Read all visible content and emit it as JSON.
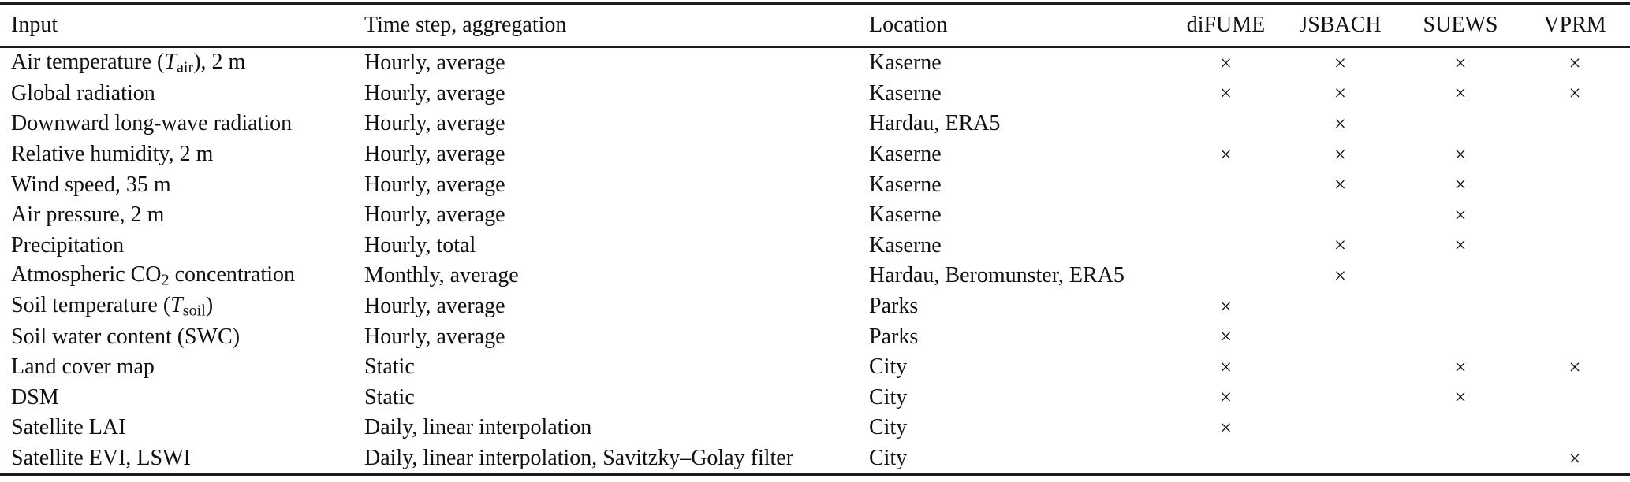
{
  "colors": {
    "text": "#111111",
    "rule": "#1c1c1c",
    "background": "#ffffff"
  },
  "table": {
    "mark_glyph": "×",
    "headers": {
      "input": "Input",
      "timestep": "Time step, aggregation",
      "location": "Location",
      "models": [
        "diFUME",
        "JSBACH",
        "SUEWS",
        "VPRM"
      ]
    },
    "rows": [
      {
        "input": [
          {
            "t": "Air temperature ("
          },
          {
            "t": "T",
            "style": "italic"
          },
          {
            "t": "air",
            "style": "sub"
          },
          {
            "t": "), 2 m"
          }
        ],
        "timestep": "Hourly, average",
        "location": "Kaserne",
        "marks": [
          true,
          true,
          true,
          true
        ]
      },
      {
        "input": "Global radiation",
        "timestep": "Hourly, average",
        "location": "Kaserne",
        "marks": [
          true,
          true,
          true,
          true
        ]
      },
      {
        "input": "Downward long-wave radiation",
        "timestep": "Hourly, average",
        "location": "Hardau, ERA5",
        "marks": [
          false,
          true,
          false,
          false
        ]
      },
      {
        "input": "Relative humidity, 2 m",
        "timestep": "Hourly, average",
        "location": "Kaserne",
        "marks": [
          true,
          true,
          true,
          false
        ]
      },
      {
        "input": "Wind speed, 35 m",
        "timestep": "Hourly, average",
        "location": "Kaserne",
        "marks": [
          false,
          true,
          true,
          false
        ]
      },
      {
        "input": "Air pressure, 2 m",
        "timestep": "Hourly, average",
        "location": "Kaserne",
        "marks": [
          false,
          false,
          true,
          false
        ]
      },
      {
        "input": "Precipitation",
        "timestep": "Hourly, total",
        "location": "Kaserne",
        "marks": [
          false,
          true,
          true,
          false
        ]
      },
      {
        "input": [
          {
            "t": "Atmospheric CO"
          },
          {
            "t": "2",
            "style": "sub"
          },
          {
            "t": " concentration"
          }
        ],
        "timestep": "Monthly, average",
        "location": "Hardau, Beromunster, ERA5",
        "marks": [
          false,
          true,
          false,
          false
        ]
      },
      {
        "input": [
          {
            "t": "Soil temperature ("
          },
          {
            "t": "T",
            "style": "italic"
          },
          {
            "t": "soil",
            "style": "sub"
          },
          {
            "t": ")"
          }
        ],
        "timestep": "Hourly, average",
        "location": "Parks",
        "marks": [
          true,
          false,
          false,
          false
        ]
      },
      {
        "input": "Soil water content (SWC)",
        "timestep": "Hourly, average",
        "location": "Parks",
        "marks": [
          true,
          false,
          false,
          false
        ]
      },
      {
        "input": "Land cover map",
        "timestep": "Static",
        "location": "City",
        "marks": [
          true,
          false,
          true,
          true
        ]
      },
      {
        "input": "DSM",
        "timestep": "Static",
        "location": "City",
        "marks": [
          true,
          false,
          true,
          false
        ]
      },
      {
        "input": "Satellite LAI",
        "timestep": "Daily, linear interpolation",
        "location": "City",
        "marks": [
          true,
          false,
          false,
          false
        ]
      },
      {
        "input": "Satellite EVI, LSWI",
        "timestep": "Daily, linear interpolation, Savitzky–Golay filter",
        "location": "City",
        "marks": [
          false,
          false,
          false,
          true
        ]
      }
    ]
  }
}
